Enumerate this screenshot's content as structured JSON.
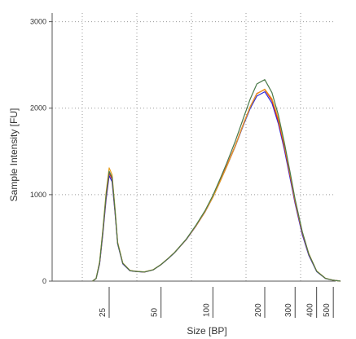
{
  "chart_data": {
    "type": "line",
    "xlabel": "Size [BP]",
    "ylabel": "Sample Intensity [FU]",
    "ylim": [
      0,
      3100
    ],
    "y_ticks": [
      "0",
      "1000",
      "2000",
      "3000"
    ],
    "x_ticks": [
      {
        "label": "25",
        "x": 25
      },
      {
        "label": "50",
        "x": 50
      },
      {
        "label": "100",
        "x": 100
      },
      {
        "label": "200",
        "x": 200
      },
      {
        "label": "300",
        "x": 300
      },
      {
        "label": "400",
        "x": 400
      },
      {
        "label": "500",
        "x": 500
      }
    ],
    "grid": true,
    "x_points": [
      20,
      21,
      22,
      23,
      24,
      25,
      26,
      27,
      28,
      30,
      33,
      36,
      40,
      45,
      50,
      55,
      60,
      70,
      80,
      90,
      100,
      110,
      120,
      135,
      150,
      165,
      180,
      200,
      220,
      240,
      260,
      280,
      300,
      330,
      360,
      400,
      450,
      500,
      550
    ],
    "series": [
      {
        "color": "#2a2adb",
        "values": [
          0,
          30,
          200,
          550,
          950,
          1220,
          1150,
          800,
          430,
          200,
          120,
          110,
          105,
          130,
          190,
          260,
          330,
          480,
          640,
          800,
          970,
          1150,
          1320,
          1560,
          1800,
          2000,
          2140,
          2190,
          2060,
          1820,
          1520,
          1200,
          900,
          540,
          300,
          110,
          30,
          10,
          0
        ]
      },
      {
        "color": "#e02020",
        "values": [
          0,
          30,
          210,
          570,
          980,
          1250,
          1180,
          820,
          440,
          205,
          122,
          112,
          106,
          131,
          192,
          262,
          332,
          482,
          642,
          802,
          975,
          1160,
          1330,
          1570,
          1815,
          2020,
          2170,
          2215,
          2090,
          1850,
          1550,
          1230,
          920,
          560,
          310,
          115,
          32,
          10,
          0
        ]
      },
      {
        "color": "#e8a020",
        "values": [
          0,
          32,
          225,
          600,
          1030,
          1310,
          1230,
          850,
          450,
          210,
          124,
          113,
          107,
          132,
          193,
          263,
          333,
          483,
          643,
          803,
          970,
          1150,
          1320,
          1565,
          1810,
          2020,
          2165,
          2220,
          2110,
          1880,
          1575,
          1250,
          935,
          570,
          320,
          118,
          33,
          10,
          0
        ]
      },
      {
        "color": "#4a7a4a",
        "values": [
          0,
          31,
          215,
          585,
          1000,
          1270,
          1200,
          830,
          440,
          206,
          122,
          112,
          106,
          131,
          192,
          262,
          332,
          485,
          650,
          815,
          990,
          1180,
          1360,
          1620,
          1880,
          2110,
          2280,
          2330,
          2180,
          1920,
          1600,
          1270,
          950,
          575,
          315,
          115,
          32,
          10,
          0
        ]
      }
    ]
  }
}
